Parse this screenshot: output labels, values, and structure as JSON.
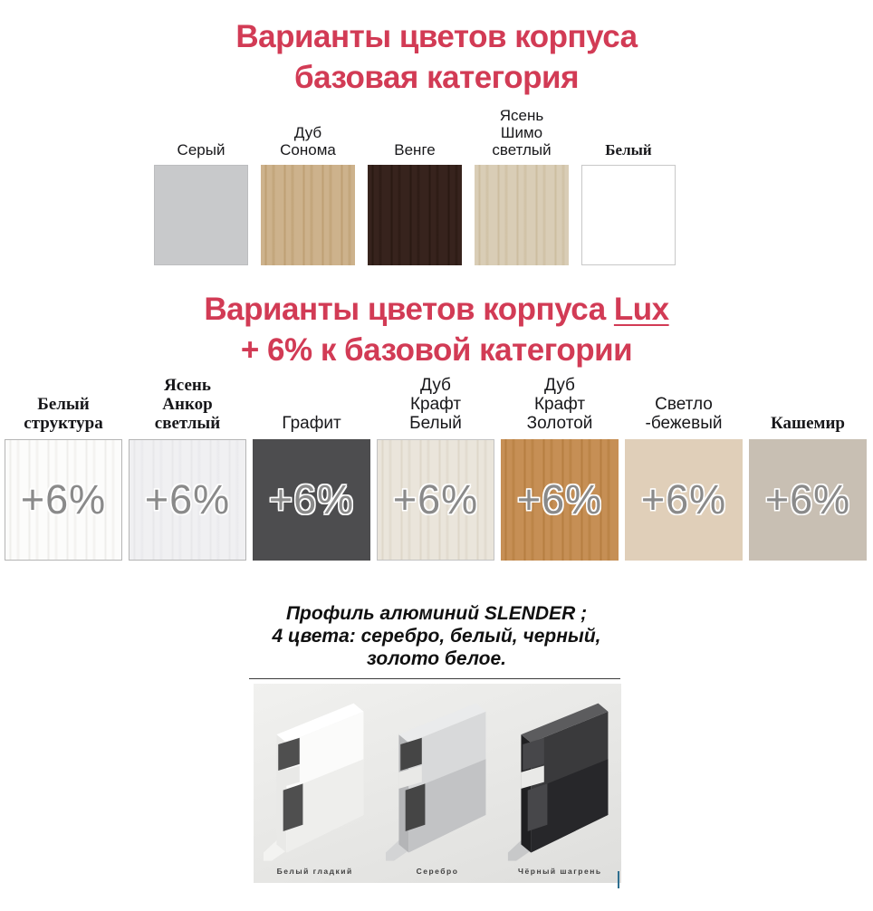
{
  "colors": {
    "title": "#d23b55",
    "badge": "#8a8a8a",
    "photo_label": "#3f3f3f",
    "cursor_mark": "#2f6f8f"
  },
  "base": {
    "title_line1": "Варианты цветов корпуса",
    "title_line2": "базовая категория",
    "swatches": [
      {
        "label": "Серый",
        "font": "sans",
        "style": "plain",
        "base": "#c8c9cb",
        "border": "#bcbdbf"
      },
      {
        "label": "Дуб\nСонома",
        "font": "sans",
        "style": "wood",
        "base": "#cdb28c",
        "grain": "#b2905e"
      },
      {
        "label": "Венге",
        "font": "sans",
        "style": "wood",
        "base": "#37231d",
        "grain": "#1e1009"
      },
      {
        "label": "Ясень\nШимо\nсветлый",
        "font": "sans",
        "style": "wood",
        "base": "#d9cdb6",
        "grain": "#c2b08c"
      },
      {
        "label": "Белый",
        "font": "serif",
        "style": "plain",
        "base": "#ffffff",
        "border": "#c8c8c8"
      }
    ]
  },
  "lux": {
    "title_prefix": "Варианты цветов корпуса ",
    "title_lux": "Lux",
    "title_line2": "+ 6% к базовой категории",
    "badge": "+6%",
    "swatches": [
      {
        "label": "Белый\nструктура",
        "font": "serif",
        "style": "wood",
        "base": "#fcfcfb",
        "grain": "#e3e1dd",
        "border": "#b5b5b5"
      },
      {
        "label": "Ясень\nАнкор\nсветлый",
        "font": "serif",
        "style": "wood",
        "base": "#f0f0f2",
        "grain": "#e0e0e4",
        "border": "#b5b5b5"
      },
      {
        "label": "Графит",
        "font": "sans",
        "style": "plain",
        "base": "#4d4d4f"
      },
      {
        "label": "Дуб\nКрафт\nБелый",
        "font": "sans",
        "style": "wood",
        "base": "#eae5db",
        "grain": "#d3cbba",
        "border": "#c2c2c2"
      },
      {
        "label": "Дуб\nКрафт\nЗолотой",
        "font": "sans",
        "style": "wood",
        "base": "#c68f55",
        "grain": "#a8702f"
      },
      {
        "label": "Светло\n-бежевый",
        "font": "sans",
        "style": "plain",
        "base": "#e0cfb9"
      },
      {
        "label": "Кашемир",
        "font": "serif",
        "style": "plain",
        "base": "#c8bfb3"
      }
    ]
  },
  "profile": {
    "line1": "Профиль алюминий SLENDER ;",
    "line2": "4 цвета: серебро, белый, черный,",
    "line3": "золото белое.",
    "items": [
      {
        "label": "Белый гладкий",
        "top": "#ffffff",
        "face": "#fbfbfa",
        "face2": "#eeeeec",
        "side": "#e9e9e7",
        "hole": "#4f4f4f",
        "flange": "#f3f3f1"
      },
      {
        "label": "Серебро",
        "top": "#eaebec",
        "face": "#d8d9da",
        "face2": "#c2c3c5",
        "side": "#b4b5b7",
        "hole": "#454545",
        "flange": "#d3d4d5"
      },
      {
        "label": "Чёрный шагрень",
        "top": "#5c5c5e",
        "face": "#3a3a3c",
        "face2": "#27272a",
        "side": "#202022",
        "hole": "#47474a",
        "flange": "#c7c8c9"
      }
    ]
  }
}
